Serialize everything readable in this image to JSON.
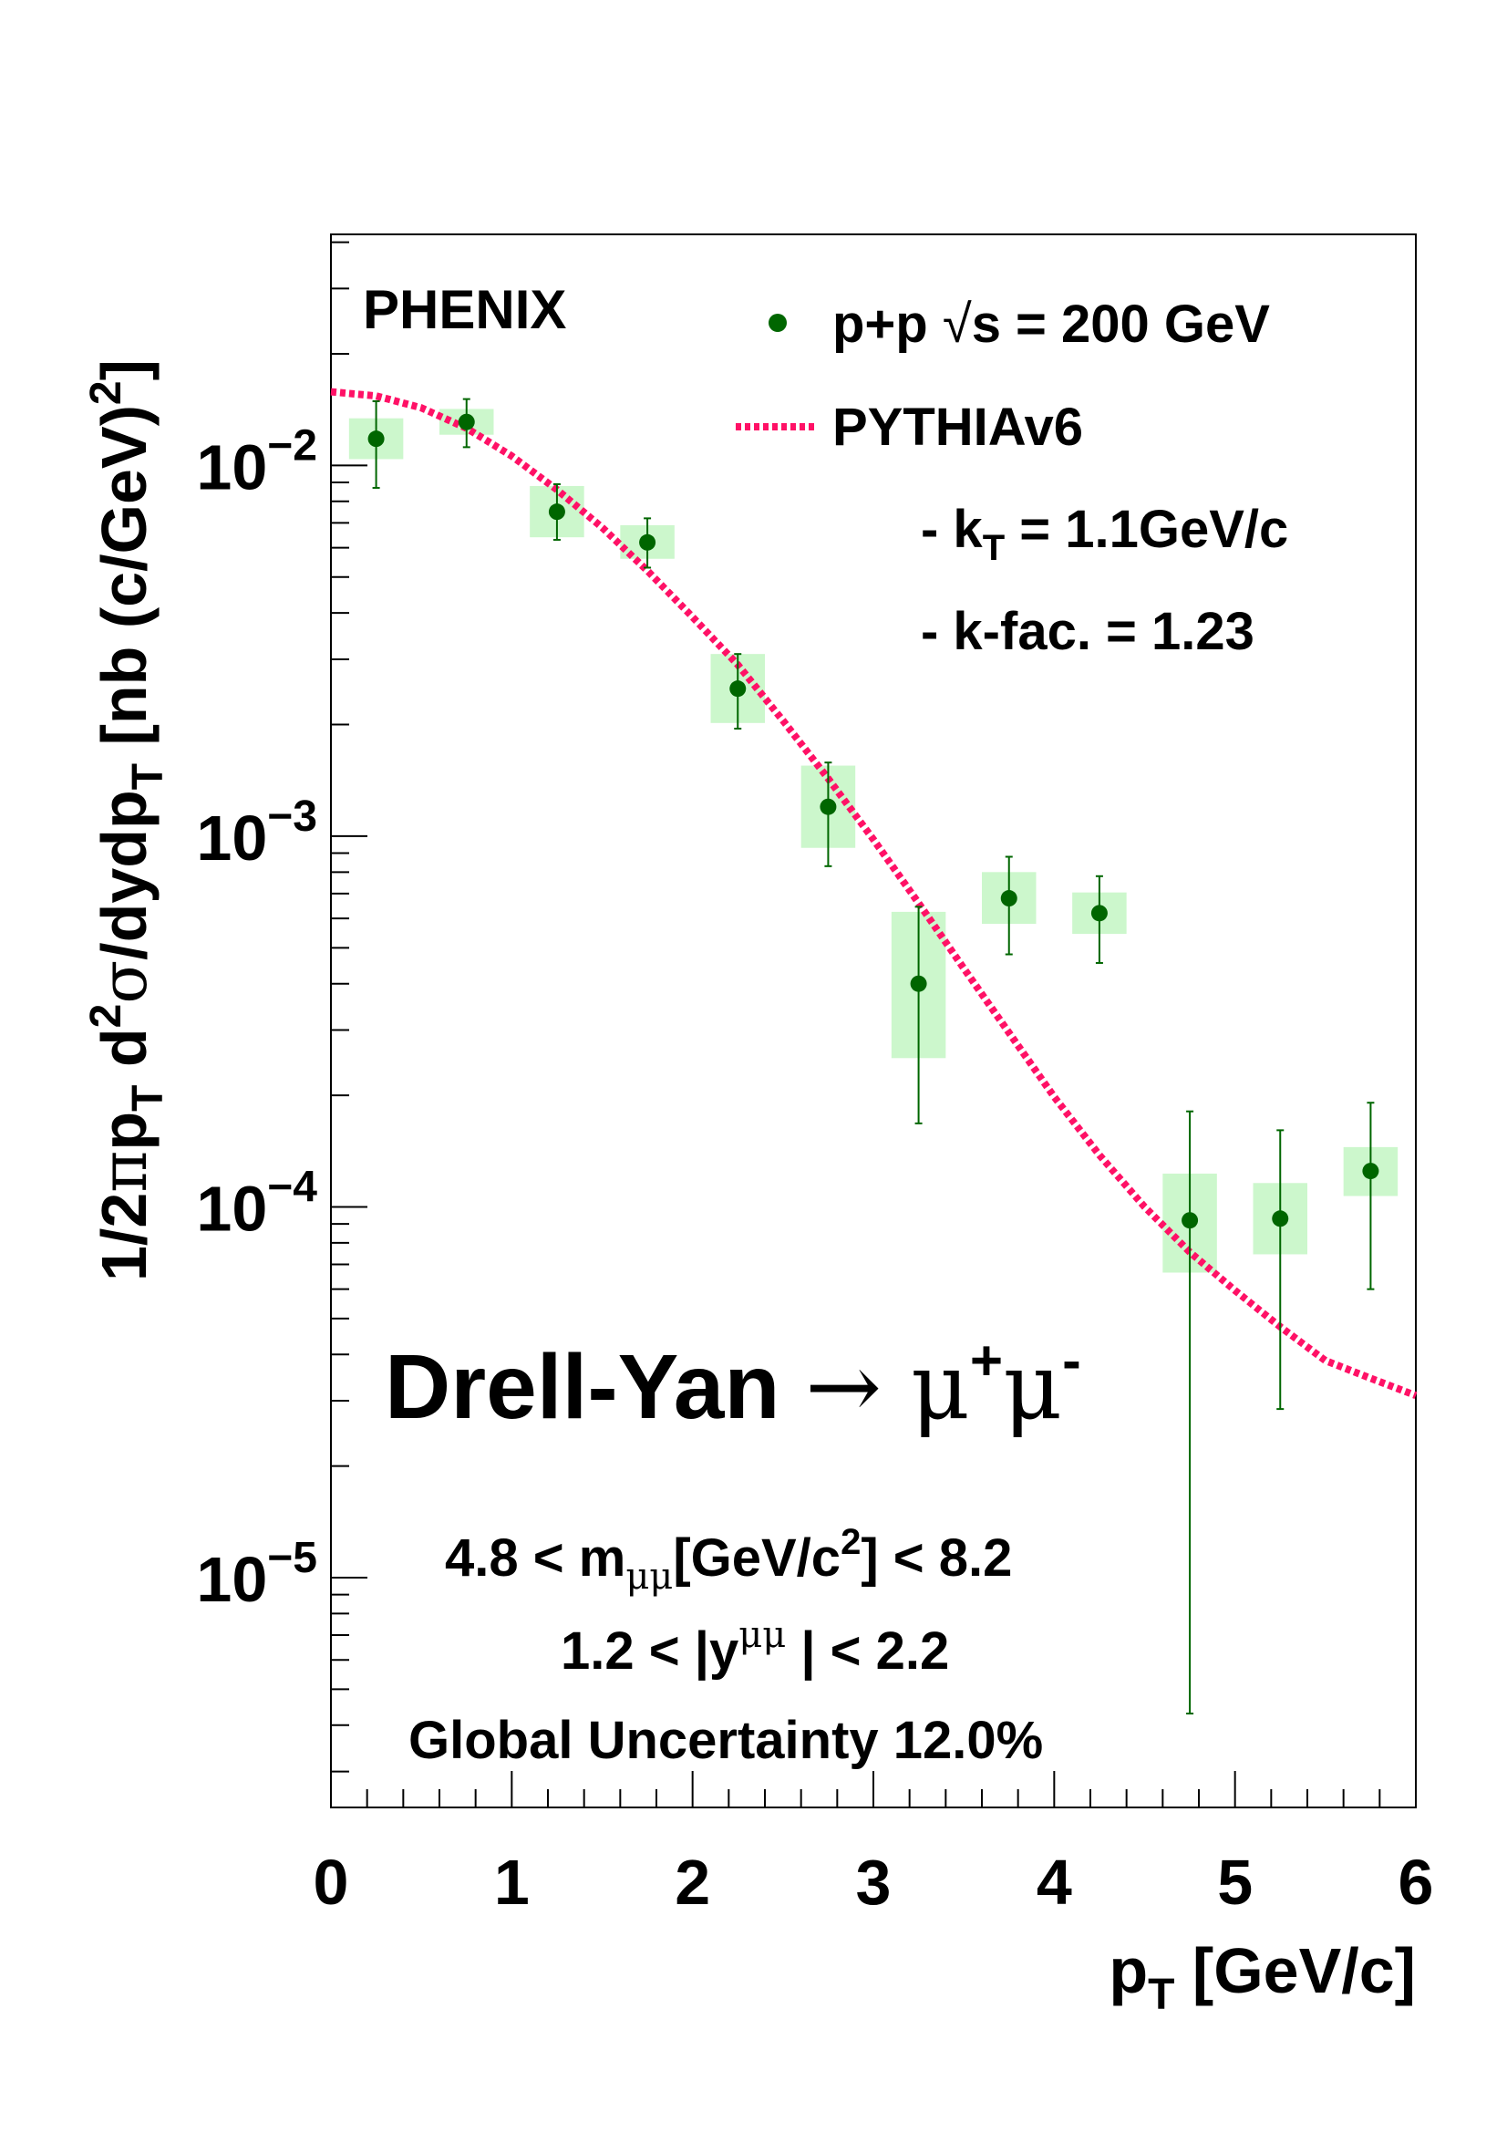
{
  "chart_data": {
    "type": "scatter",
    "experiment_label": "PHENIX",
    "xlabel": {
      "main": "p",
      "sub": "T",
      "unit": " [GeV/c]"
    },
    "ylabel": {
      "p1": "1/2",
      "pi": "π",
      "p2": "p",
      "sub1": "T",
      "p3": " d",
      "sup1": "2",
      "sigma": "σ",
      "p4": "/dydp",
      "sub2": "T",
      "p5": " [nb (c/GeV)",
      "sup2": "2",
      "p6": "]"
    },
    "xlim": [
      0,
      6
    ],
    "ylim": [
      2.4e-06,
      0.042
    ],
    "y_scale": "log",
    "x_ticks": [
      "0",
      "1",
      "2",
      "3",
      "4",
      "5",
      "6"
    ],
    "y_ticks": [
      {
        "value": 0.01,
        "base": "10",
        "exp": "−2"
      },
      {
        "value": 0.001,
        "base": "10",
        "exp": "−3"
      },
      {
        "value": 0.0001,
        "base": "10",
        "exp": "−4"
      },
      {
        "value": 1e-05,
        "base": "10",
        "exp": "−5"
      }
    ],
    "grid": false,
    "legend": {
      "placement": "top-right",
      "data_entry": {
        "a": "p+p  ",
        "sqrt": "√",
        "b": "s = 200 GeV"
      },
      "model_entry": "PYTHIAv6",
      "kt_line": {
        "a": "- k",
        "sub": "T",
        "b": " = 1.1GeV/c"
      },
      "kfac_line": "- k-fac. = 1.23"
    },
    "series": [
      {
        "name": "p+p √s = 200 GeV",
        "color": "#006600",
        "box_color": "#ccf7cc",
        "points": [
          {
            "x": 0.25,
            "y": 0.0118,
            "ylo": 0.0087,
            "yhi": 0.0149,
            "sys_lo": 0.0104,
            "sys_hi": 0.0134,
            "box_w": 0.3
          },
          {
            "x": 0.75,
            "y": 0.0131,
            "ylo": 0.0112,
            "yhi": 0.0151,
            "sys_lo": 0.0121,
            "sys_hi": 0.0142,
            "box_w": 0.3
          },
          {
            "x": 1.25,
            "y": 0.0075,
            "ylo": 0.0063,
            "yhi": 0.0089,
            "sys_lo": 0.0064,
            "sys_hi": 0.0088,
            "box_w": 0.3
          },
          {
            "x": 1.75,
            "y": 0.0062,
            "ylo": 0.0053,
            "yhi": 0.0072,
            "sys_lo": 0.0056,
            "sys_hi": 0.0069,
            "box_w": 0.3
          },
          {
            "x": 2.25,
            "y": 0.0025,
            "ylo": 0.00195,
            "yhi": 0.0031,
            "sys_lo": 0.00202,
            "sys_hi": 0.0031,
            "box_w": 0.3
          },
          {
            "x": 2.75,
            "y": 0.0012,
            "ylo": 0.00083,
            "yhi": 0.00158,
            "sys_lo": 0.00093,
            "sys_hi": 0.00155,
            "box_w": 0.3
          },
          {
            "x": 3.25,
            "y": 0.0004,
            "ylo": 0.000168,
            "yhi": 0.000645,
            "sys_lo": 0.000252,
            "sys_hi": 0.000625,
            "box_w": 0.3
          },
          {
            "x": 3.75,
            "y": 0.00068,
            "ylo": 0.00048,
            "yhi": 0.00088,
            "sys_lo": 0.00058,
            "sys_hi": 0.0008,
            "box_w": 0.3
          },
          {
            "x": 4.25,
            "y": 0.00062,
            "ylo": 0.000455,
            "yhi": 0.00078,
            "sys_lo": 0.000545,
            "sys_hi": 0.000705,
            "box_w": 0.3
          },
          {
            "x": 4.75,
            "y": 9.2e-05,
            "ylo": 4.3e-06,
            "yhi": 0.000181,
            "sys_lo": 6.65e-05,
            "sys_hi": 0.000123,
            "box_w": 0.3
          },
          {
            "x": 5.25,
            "y": 9.3e-05,
            "ylo": 2.85e-05,
            "yhi": 0.000161,
            "sys_lo": 7.45e-05,
            "sys_hi": 0.000116,
            "box_w": 0.3
          },
          {
            "x": 5.75,
            "y": 0.000125,
            "ylo": 6e-05,
            "yhi": 0.000191,
            "sys_lo": 0.000107,
            "sys_hi": 0.000145,
            "box_w": 0.3
          }
        ]
      },
      {
        "name": "PYTHIAv6",
        "color": "#ff1166",
        "style": "dotted",
        "x": [
          0.0,
          0.25,
          0.5,
          0.75,
          1.0,
          1.25,
          1.5,
          1.75,
          2.0,
          2.25,
          2.5,
          2.75,
          3.0,
          3.25,
          3.5,
          3.75,
          4.0,
          4.25,
          4.5,
          4.75,
          5.0,
          5.25,
          5.5,
          5.75,
          6.0
        ],
        "y": [
          0.0158,
          0.0154,
          0.0143,
          0.0126,
          0.0106,
          0.0086,
          0.0068,
          0.0052,
          0.0039,
          0.0029,
          0.00205,
          0.00143,
          0.00098,
          0.00066,
          0.00044,
          0.000295,
          0.000198,
          0.000138,
          0.0001,
          7.55e-05,
          5.95e-05,
          4.75e-05,
          3.85e-05,
          3.45e-05,
          3.1e-05
        ]
      }
    ],
    "annotations": {
      "process": {
        "a": "Drell-Yan ",
        "arrow": "→",
        "mu1": " μ",
        "sup1": "+",
        "mu2": "μ",
        "sup2": "-"
      },
      "mass_cut": {
        "a": "4.8 < m",
        "sub": "μμ",
        "b": "[GeV/c",
        "sup": "2",
        "c": "]  < 8.2"
      },
      "rapidity_cut": {
        "a": "1.2 < |y",
        "sup": "μμ",
        "b": " | < 2.2"
      },
      "global_uncertainty": "Global Uncertainty 12.0%"
    }
  }
}
